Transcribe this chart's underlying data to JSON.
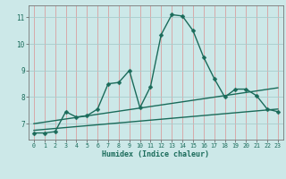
{
  "xlabel": "Humidex (Indice chaleur)",
  "bg_color": "#cce8e8",
  "line_color": "#1a6b5a",
  "xlim": [
    -0.5,
    23.5
  ],
  "ylim": [
    6.4,
    11.45
  ],
  "xtick_labels": [
    "0",
    "1",
    "2",
    "3",
    "4",
    "5",
    "6",
    "7",
    "8",
    "9",
    "10",
    "11",
    "12",
    "13",
    "14",
    "15",
    "16",
    "17",
    "18",
    "19",
    "20",
    "21",
    "22",
    "23"
  ],
  "ytick_vals": [
    7,
    8,
    9,
    10,
    11
  ],
  "ytick_labels": [
    "7",
    "8",
    "9",
    "10",
    "11"
  ],
  "main_x": [
    0,
    1,
    2,
    3,
    4,
    5,
    6,
    7,
    8,
    9,
    10,
    11,
    12,
    13,
    14,
    15,
    16,
    17,
    18,
    19,
    20,
    21,
    22,
    23
  ],
  "main_y": [
    6.65,
    6.65,
    6.7,
    7.45,
    7.25,
    7.3,
    7.55,
    8.5,
    8.55,
    9.0,
    7.6,
    8.4,
    10.35,
    11.1,
    11.05,
    10.5,
    9.5,
    8.7,
    8.0,
    8.3,
    8.3,
    8.05,
    7.55,
    7.45
  ],
  "trend1_x": [
    0,
    23
  ],
  "trend1_y": [
    6.75,
    7.55
  ],
  "trend2_x": [
    0,
    23
  ],
  "trend2_y": [
    7.0,
    8.35
  ],
  "vgrid_color": "#d8a0a0",
  "hgrid_color": "#a8cccc",
  "marker_size": 2.5,
  "line_width": 1.0
}
